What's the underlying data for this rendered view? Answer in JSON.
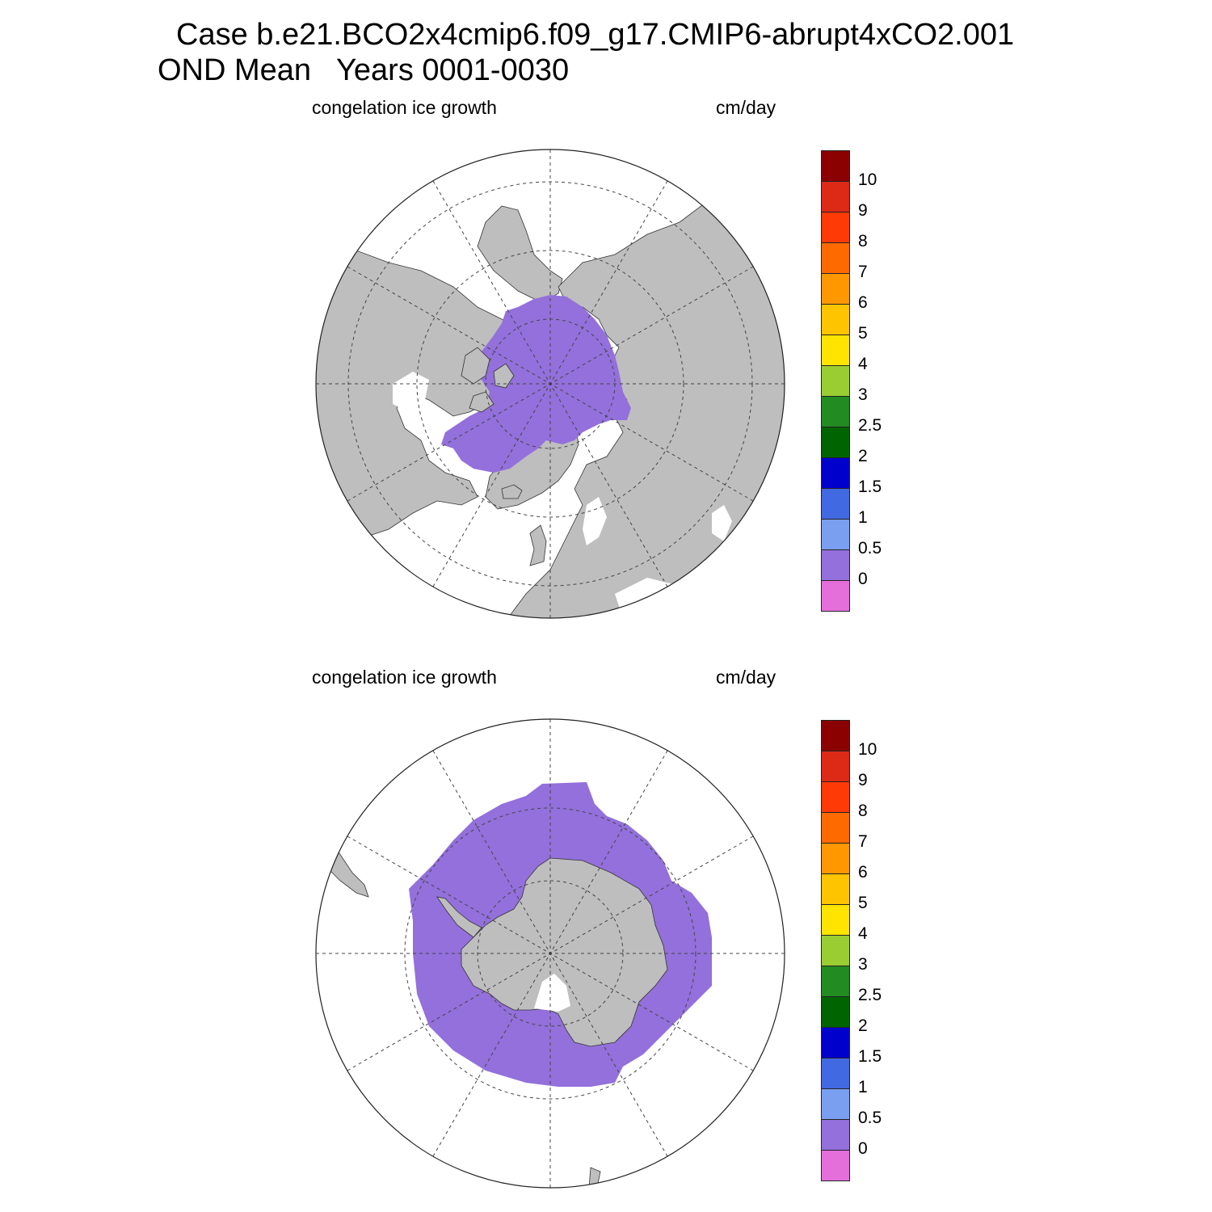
{
  "title": {
    "line1": "Case b.e21.BCO2x4cmip6.f09_g17.CMIP6-abrupt4xCO2.001",
    "line2": "OND Mean   Years 0001-0030"
  },
  "colors": {
    "land": "#bebebe",
    "ocean": "#ffffff",
    "ice_growth": "#9370db"
  },
  "colorbar": {
    "labels": [
      "10",
      "9",
      "8",
      "7",
      "6",
      "5",
      "4",
      "3",
      "2.5",
      "2",
      "1.5",
      "1",
      "0.5",
      "0"
    ],
    "colors": [
      "#8b0000",
      "#dc2a16",
      "#ff3a06",
      "#ff6a00",
      "#ff9800",
      "#ffc400",
      "#ffe400",
      "#9acd32",
      "#228b22",
      "#006400",
      "#0000cd",
      "#4169e1",
      "#7b9ff0",
      "#9370db",
      "#e46fdb"
    ]
  },
  "panels": [
    {
      "id": "north",
      "variable": "congelation ice growth",
      "units": "cm/day",
      "hemisphere": "north"
    },
    {
      "id": "south",
      "variable": "congelation ice growth",
      "units": "cm/day",
      "hemisphere": "south"
    }
  ]
}
